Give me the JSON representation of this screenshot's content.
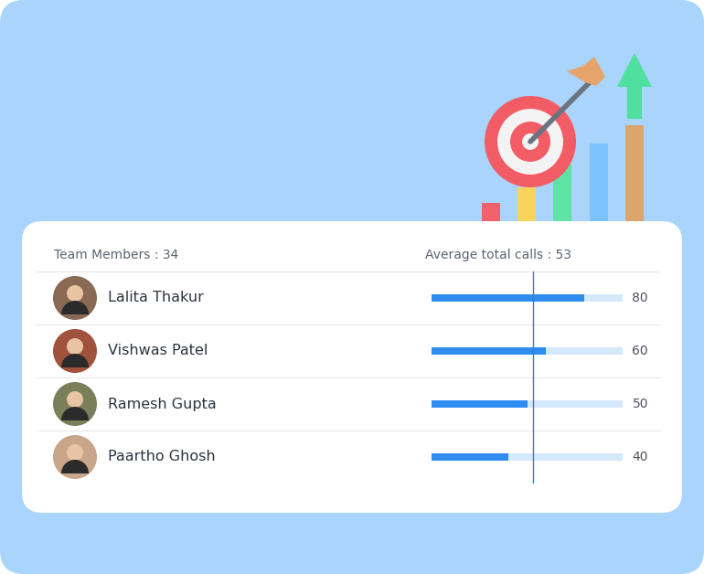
{
  "chart_data": {
    "type": "bar",
    "orientation": "horizontal",
    "annotations": [
      "Team Members : 34",
      "Average total calls : 53"
    ],
    "average": 53,
    "categories": [
      "Lalita Thakur",
      "Vishwas Patel",
      "Ramesh Gupta",
      "Paartho Ghosh"
    ],
    "values": [
      80,
      60,
      50,
      40
    ],
    "color": "#2f8cf0",
    "xlim": [
      0,
      100
    ],
    "data_labels": true,
    "tick_labels": false,
    "grid": false
  }
}
